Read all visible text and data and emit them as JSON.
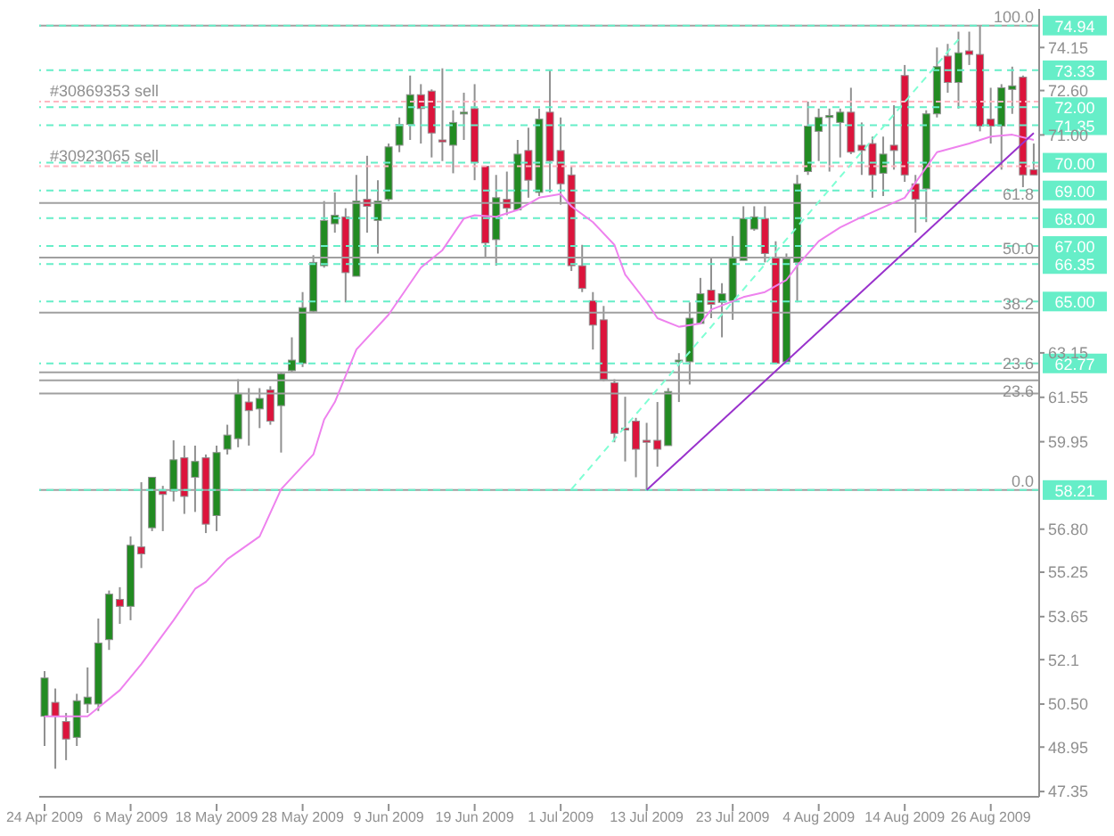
{
  "chart_data": {
    "type": "candlestick",
    "categories": [
      "24 Apr 2009",
      null,
      null,
      null,
      null,
      null,
      null,
      null,
      "6 May 2009",
      null,
      null,
      null,
      null,
      null,
      null,
      null,
      "18 May 2009",
      null,
      null,
      null,
      null,
      null,
      null,
      null,
      "28 May 2009",
      null,
      null,
      null,
      null,
      null,
      null,
      null,
      "9 Jun 2009",
      null,
      null,
      null,
      null,
      null,
      null,
      null,
      "19 Jun 2009",
      null,
      null,
      null,
      null,
      null,
      null,
      null,
      "1 Jul 2009",
      null,
      null,
      null,
      null,
      null,
      null,
      null,
      "13 Jul 2009",
      null,
      null,
      null,
      null,
      null,
      null,
      null,
      "23 Jul 2009",
      null,
      null,
      null,
      null,
      null,
      null,
      null,
      "4 Aug 2009",
      null,
      null,
      null,
      null,
      null,
      null,
      null,
      "14 Aug 2009",
      null,
      null,
      null,
      null,
      null,
      null,
      null,
      "26 Aug 2009",
      null,
      null,
      null,
      null
    ],
    "ohlc": [
      [
        50.06,
        51.69,
        48.99,
        51.44
      ],
      [
        50.56,
        51.06,
        48.17,
        50.06
      ],
      [
        49.87,
        50.18,
        48.48,
        49.24
      ],
      [
        49.3,
        50.87,
        48.99,
        50.62
      ],
      [
        50.5,
        51.82,
        50.18,
        50.75
      ],
      [
        50.5,
        53.58,
        50.25,
        52.7
      ],
      [
        52.82,
        54.59,
        52.45,
        54.46
      ],
      [
        54.27,
        54.71,
        53.39,
        54.02
      ],
      [
        54.02,
        56.54,
        53.52,
        56.22
      ],
      [
        56.16,
        58.49,
        55.4,
        55.91
      ],
      [
        56.85,
        58.67,
        56.73,
        58.67
      ],
      [
        58.17,
        58.36,
        56.73,
        58.05
      ],
      [
        58.17,
        60.0,
        57.8,
        59.3
      ],
      [
        59.37,
        59.81,
        57.35,
        57.98
      ],
      [
        58.67,
        59.81,
        57.42,
        59.24
      ],
      [
        59.37,
        59.49,
        56.66,
        56.98
      ],
      [
        57.29,
        59.81,
        56.73,
        59.56
      ],
      [
        59.68,
        60.56,
        59.49,
        60.19
      ],
      [
        60.06,
        62.2,
        59.75,
        61.69
      ],
      [
        61.38,
        61.88,
        59.81,
        61.07
      ],
      [
        61.13,
        61.88,
        60.44,
        61.51
      ],
      [
        61.82,
        61.95,
        60.56,
        60.69
      ],
      [
        61.25,
        62.45,
        59.56,
        62.39
      ],
      [
        62.51,
        63.71,
        62.45,
        62.89
      ],
      [
        62.77,
        65.34,
        62.64,
        64.78
      ],
      [
        64.65,
        66.67,
        64.59,
        66.41
      ],
      [
        66.29,
        68.62,
        66.22,
        67.92
      ],
      [
        67.8,
        68.93,
        67.48,
        68.11
      ],
      [
        68.05,
        68.36,
        64.97,
        66.04
      ],
      [
        65.91,
        69.56,
        65.91,
        68.62
      ],
      [
        68.68,
        70.25,
        67.48,
        68.43
      ],
      [
        67.92,
        69.37,
        66.73,
        68.62
      ],
      [
        68.68,
        70.69,
        68.62,
        70.57
      ],
      [
        70.63,
        71.63,
        70.38,
        71.38
      ],
      [
        71.38,
        73.14,
        70.82,
        72.45
      ],
      [
        72.45,
        72.83,
        70.69,
        71.95
      ],
      [
        72.58,
        72.64,
        70.19,
        71.07
      ],
      [
        70.82,
        73.4,
        70.06,
        70.75
      ],
      [
        70.63,
        71.89,
        69.62,
        71.45
      ],
      [
        71.82,
        72.52,
        70.82,
        71.82
      ],
      [
        71.95,
        72.83,
        69.37,
        70.0
      ],
      [
        69.87,
        69.87,
        66.6,
        67.11
      ],
      [
        67.23,
        69.56,
        66.29,
        68.74
      ],
      [
        68.68,
        69.68,
        68.11,
        68.36
      ],
      [
        68.3,
        70.82,
        68.3,
        70.31
      ],
      [
        70.44,
        71.26,
        68.74,
        69.37
      ],
      [
        68.93,
        71.95,
        68.8,
        71.57
      ],
      [
        71.82,
        73.33,
        68.93,
        70.06
      ],
      [
        70.44,
        71.63,
        68.49,
        69.24
      ],
      [
        69.56,
        69.87,
        66.1,
        66.29
      ],
      [
        66.29,
        67.04,
        65.34,
        65.47
      ],
      [
        65.03,
        65.34,
        63.27,
        64.15
      ],
      [
        64.34,
        64.84,
        62.13,
        62.2
      ],
      [
        62.07,
        62.2,
        59.93,
        60.25
      ],
      [
        60.44,
        61.57,
        59.24,
        60.37
      ],
      [
        60.69,
        60.81,
        58.67,
        59.68
      ],
      [
        60.0,
        60.63,
        58.21,
        59.93
      ],
      [
        60.0,
        61.38,
        59.05,
        59.68
      ],
      [
        59.81,
        61.88,
        59.81,
        61.76
      ],
      [
        62.83,
        63.14,
        61.38,
        62.89
      ],
      [
        62.83,
        64.97,
        62.01,
        64.4
      ],
      [
        64.21,
        65.85,
        64.21,
        65.28
      ],
      [
        65.41,
        66.6,
        64.4,
        64.9
      ],
      [
        64.97,
        65.66,
        63.71,
        65.28
      ],
      [
        65.03,
        67.36,
        64.34,
        66.6
      ],
      [
        66.48,
        68.43,
        66.48,
        67.99
      ],
      [
        67.61,
        68.43,
        67.55,
        68.05
      ],
      [
        67.99,
        68.43,
        66.41,
        66.73
      ],
      [
        66.6,
        67.17,
        62.77,
        62.77
      ],
      [
        62.83,
        66.73,
        62.83,
        66.54
      ],
      [
        66.41,
        69.56,
        64.97,
        69.24
      ],
      [
        69.68,
        72.2,
        69.56,
        71.32
      ],
      [
        71.13,
        71.95,
        70.06,
        71.63
      ],
      [
        71.63,
        71.95,
        69.68,
        71.7
      ],
      [
        71.45,
        71.95,
        70.19,
        71.82
      ],
      [
        71.82,
        72.7,
        70.31,
        70.38
      ],
      [
        70.63,
        71.45,
        69.56,
        70.44
      ],
      [
        70.69,
        70.94,
        68.74,
        69.56
      ],
      [
        69.62,
        70.94,
        68.8,
        70.31
      ],
      [
        70.63,
        72.07,
        69.75,
        70.44
      ],
      [
        73.14,
        73.52,
        69.31,
        69.56
      ],
      [
        69.24,
        69.56,
        67.48,
        68.68
      ],
      [
        69.06,
        71.89,
        67.86,
        71.76
      ],
      [
        71.76,
        74.15,
        71.63,
        73.46
      ],
      [
        73.84,
        74.28,
        72.52,
        72.89
      ],
      [
        72.89,
        74.72,
        71.95,
        73.96
      ],
      [
        74.03,
        74.72,
        73.52,
        73.9
      ],
      [
        73.9,
        74.94,
        71.13,
        71.32
      ],
      [
        71.57,
        72.7,
        70.69,
        71.32
      ],
      [
        71.32,
        72.83,
        69.75,
        72.7
      ],
      [
        72.64,
        73.46,
        71.76,
        72.77
      ],
      [
        73.08,
        73.14,
        69.12,
        69.56
      ],
      [
        69.75,
        70.69,
        69.56,
        69.56
      ]
    ],
    "colors": [
      "#228b22",
      "#dc143c",
      "#dc143c",
      "#228b22",
      "#228b22",
      "#228b22",
      "#228b22",
      "#dc143c",
      "#228b22",
      "#dc143c",
      "#228b22",
      "#dc143c",
      "#228b22",
      "#dc143c",
      "#228b22",
      "#dc143c",
      "#228b22",
      "#228b22",
      "#228b22",
      "#dc143c",
      "#228b22",
      "#dc143c",
      "#228b22",
      "#228b22",
      "#228b22",
      "#228b22",
      "#228b22",
      "#228b22",
      "#dc143c",
      "#228b22",
      "#dc143c",
      "#228b22",
      "#228b22",
      "#228b22",
      "#228b22",
      "#dc143c",
      "#dc143c",
      "#dc143c",
      "#228b22",
      "#228b22",
      "#dc143c",
      "#dc143c",
      "#228b22",
      "#dc143c",
      "#228b22",
      "#dc143c",
      "#228b22",
      "#dc143c",
      "#dc143c",
      "#dc143c",
      "#dc143c",
      "#dc143c",
      "#dc143c",
      "#dc143c",
      "#dc143c",
      "#dc143c",
      "#dc143c",
      "#dc143c",
      "#228b22",
      "#228b22",
      "#228b22",
      "#228b22",
      "#dc143c",
      "#228b22",
      "#228b22",
      "#228b22",
      "#228b22",
      "#dc143c",
      "#dc143c",
      "#228b22",
      "#228b22",
      "#228b22",
      "#228b22",
      "#228b22",
      "#228b22",
      "#dc143c",
      "#dc143c",
      "#dc143c",
      "#228b22",
      "#dc143c",
      "#dc143c",
      "#dc143c",
      "#228b22",
      "#228b22",
      "#dc143c",
      "#228b22",
      "#dc143c",
      "#dc143c",
      "#dc143c",
      "#228b22",
      "#228b22",
      "#dc143c",
      "#dc143c"
    ],
    "series": [
      {
        "type": "line",
        "color": "#ee82ee",
        "line_style": "solid",
        "values": [
          50.06,
          null,
          null,
          null,
          50.06,
          50.37,
          null,
          51.0,
          null,
          51.94,
          null,
          null,
          53.52,
          null,
          54.65,
          54.9,
          null,
          55.72,
          null,
          null,
          56.54,
          null,
          58.24,
          null,
          null,
          59.49,
          60.75,
          61.38,
          null,
          63.27,
          null,
          null,
          64.53,
          null,
          null,
          66.22,
          null,
          66.85,
          null,
          67.99,
          68.11,
          null,
          68.05,
          null,
          68.3,
          null,
          68.74,
          null,
          68.87,
          68.43,
          null,
          67.86,
          null,
          67.04,
          65.97,
          null,
          64.97,
          64.4,
          null,
          64.09,
          null,
          64.21,
          64.71,
          null,
          null,
          65.16,
          null,
          65.34,
          null,
          65.78,
          66.29,
          null,
          67.17,
          null,
          67.67,
          null,
          68.05,
          null,
          null,
          null,
          68.74,
          null,
          null,
          70.38,
          null,
          null,
          70.69,
          null,
          70.94,
          null,
          71.01,
          null,
          70.82
        ]
      },
      {
        "type": "line",
        "color": "#9932cc",
        "line_style": "solid",
        "values": [
          null,
          null,
          null,
          null,
          null,
          null,
          null,
          null,
          null,
          null,
          null,
          null,
          null,
          null,
          null,
          null,
          null,
          null,
          null,
          null,
          null,
          null,
          null,
          null,
          null,
          null,
          null,
          null,
          null,
          null,
          null,
          null,
          null,
          null,
          null,
          null,
          null,
          null,
          null,
          null,
          null,
          null,
          null,
          null,
          null,
          null,
          null,
          null,
          null,
          null,
          null,
          null,
          null,
          null,
          null,
          null,
          58.21,
          null,
          null,
          null,
          null,
          null,
          null,
          null,
          null,
          null,
          null,
          null,
          null,
          null,
          null,
          null,
          null,
          null,
          null,
          null,
          null,
          null,
          null,
          null,
          null,
          null,
          null,
          null,
          null,
          null,
          null,
          null,
          null,
          null,
          null,
          null,
          71.07
        ]
      },
      {
        "type": "line",
        "color": "#7fffd4",
        "line_style": "dashed",
        "values": [
          null,
          null,
          null,
          null,
          null,
          null,
          null,
          null,
          null,
          null,
          null,
          null,
          null,
          null,
          null,
          null,
          null,
          null,
          null,
          null,
          null,
          null,
          null,
          null,
          null,
          null,
          null,
          null,
          null,
          null,
          null,
          null,
          null,
          null,
          null,
          null,
          null,
          null,
          null,
          null,
          null,
          null,
          null,
          null,
          null,
          null,
          null,
          null,
          null,
          58.24,
          null,
          null,
          null,
          null,
          null,
          null,
          null,
          null,
          null,
          null,
          null,
          null,
          null,
          null,
          null,
          null,
          null,
          null,
          null,
          null,
          null,
          null,
          null,
          null,
          null,
          null,
          null,
          null,
          null,
          null,
          null,
          null,
          null,
          null,
          null,
          74.44,
          null,
          null,
          null,
          null,
          null,
          null,
          null
        ]
      }
    ],
    "ylim": [
      47.16,
      75.54
    ],
    "yticks": [
      47.35,
      48.95,
      {
        "value": 50.5,
        "label": "50.50"
      },
      52.1,
      53.65,
      55.25,
      {
        "value": 56.8,
        "label": "56.80"
      },
      59.95,
      61.55,
      63.15,
      {
        "value": 71,
        "label": "71.00"
      },
      {
        "value": 72.6,
        "label": "72.60"
      },
      74.15
    ],
    "ref_lines": [
      {
        "axis": "y",
        "value": 74.94,
        "color": "#a0a0a0",
        "line_style": "solid"
      },
      {
        "axis": "y",
        "value": 68.55,
        "color": "#a0a0a0",
        "line_style": "solid"
      },
      {
        "axis": "y",
        "value": 66.58,
        "color": "#a0a0a0",
        "line_style": "solid"
      },
      {
        "axis": "y",
        "value": 64.6,
        "color": "#a0a0a0",
        "line_style": "solid"
      },
      {
        "axis": "y",
        "value": 62.45,
        "color": "#a0a0a0",
        "line_style": "solid"
      },
      {
        "axis": "y",
        "value": 62.16,
        "color": "#a0a0a0",
        "line_style": "solid"
      },
      {
        "axis": "y",
        "value": 58.21,
        "color": "#a0a0a0",
        "line_style": "solid"
      },
      {
        "axis": "y",
        "value": 61.69,
        "color": "#a0a0a0",
        "line_style": "solid"
      },
      {
        "axis": "y",
        "value": 74.94,
        "label": "74.94",
        "color": "#66eec8",
        "line_style": "dashed"
      },
      {
        "axis": "y",
        "value": 73.33,
        "label": "73.33",
        "color": "#66eec8",
        "line_style": "dashed"
      },
      {
        "axis": "y",
        "value": 72.0,
        "label": "72.00",
        "color": "#66eec8",
        "line_style": "dashed"
      },
      {
        "axis": "y",
        "value": 71.35,
        "label": "71.35",
        "color": "#66eec8",
        "line_style": "dashed"
      },
      {
        "axis": "y",
        "value": 70.0,
        "label": "70.00",
        "color": "#66eec8",
        "line_style": "dashed"
      },
      {
        "axis": "y",
        "value": 69.0,
        "label": "69.00",
        "color": "#66eec8",
        "line_style": "dashed"
      },
      {
        "axis": "y",
        "value": 68.0,
        "label": "68.00",
        "color": "#66eec8",
        "line_style": "dashed"
      },
      {
        "axis": "y",
        "value": 67.0,
        "label": "67.00",
        "color": "#66eec8",
        "line_style": "dashed"
      },
      {
        "axis": "y",
        "value": 66.35,
        "label": "66.35",
        "color": "#66eec8",
        "line_style": "dashed"
      },
      {
        "axis": "y",
        "value": 65.0,
        "label": "65.00",
        "color": "#66eec8",
        "line_style": "dashed"
      },
      {
        "axis": "y",
        "value": 62.77,
        "label": "62.77",
        "color": "#66eec8",
        "line_style": "dashed"
      },
      {
        "axis": "y",
        "value": 58.21,
        "label": "58.21",
        "color": "#66eec8",
        "line_style": "dashed"
      },
      {
        "axis": "y",
        "value": 72.2,
        "label": "#30869353 sell",
        "color": "#ffb6c1",
        "line_style": "dotted"
      },
      {
        "axis": "y",
        "value": 69.87,
        "label": "#30923065 sell",
        "color": "#ffb6c1",
        "line_style": "dotted"
      }
    ],
    "annotations": [
      {
        "text": "100.0",
        "y": 74.94
      },
      {
        "text": "61.8",
        "y": 68.55
      },
      {
        "text": "50.0",
        "y": 66.58
      },
      {
        "text": "38.2",
        "y": 64.6
      },
      {
        "text": "23.6",
        "y": 62.45
      },
      {
        "text": "23.6",
        "y": 62.16
      },
      {
        "text": "0.0",
        "y": 58.21
      }
    ]
  }
}
